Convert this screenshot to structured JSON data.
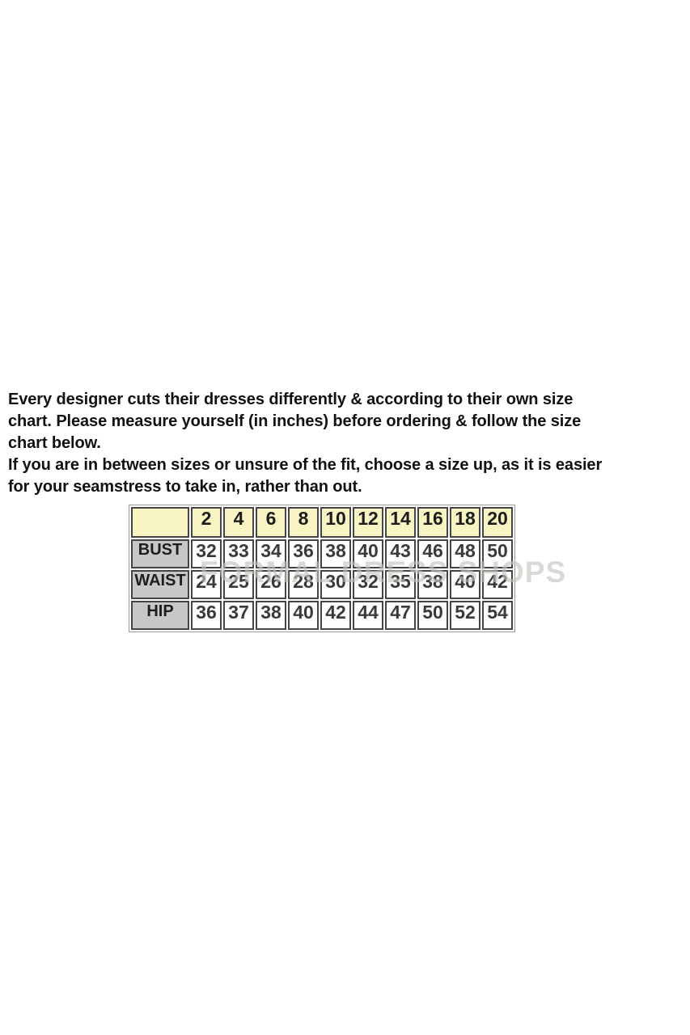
{
  "intro": {
    "lines": [
      "Every designer cuts their dresses differently & according to their own size",
      "chart. Please measure yourself (in inches) before ordering & follow the size",
      "chart below.",
      "If you are in between sizes or unsure of the fit, choose a size up, as it is easier",
      "for your seamstress to take in, rather than out."
    ]
  },
  "size_chart": {
    "corner_label": "",
    "sizes": [
      "2",
      "4",
      "6",
      "8",
      "10",
      "12",
      "14",
      "16",
      "18",
      "20"
    ],
    "rows": [
      {
        "label": "BUST",
        "values": [
          "32",
          "33",
          "34",
          "36",
          "38",
          "40",
          "43",
          "46",
          "48",
          "50"
        ]
      },
      {
        "label": "WAIST",
        "values": [
          "24",
          "25",
          "26",
          "28",
          "30",
          "32",
          "35",
          "38",
          "40",
          "42"
        ]
      },
      {
        "label": "HIP",
        "values": [
          "36",
          "37",
          "38",
          "40",
          "42",
          "44",
          "47",
          "50",
          "52",
          "54"
        ]
      }
    ]
  },
  "watermark": {
    "text": "FORMAL DRESS SHOPS"
  },
  "colors": {
    "header_bg": "#f7f3c3",
    "label_bg": "#c7c7c7",
    "cell_bg": "#fdfdfd",
    "border": "#454545",
    "text": "#111111",
    "value_text": "#3a3a3a",
    "watermark": "#c3c3be"
  }
}
